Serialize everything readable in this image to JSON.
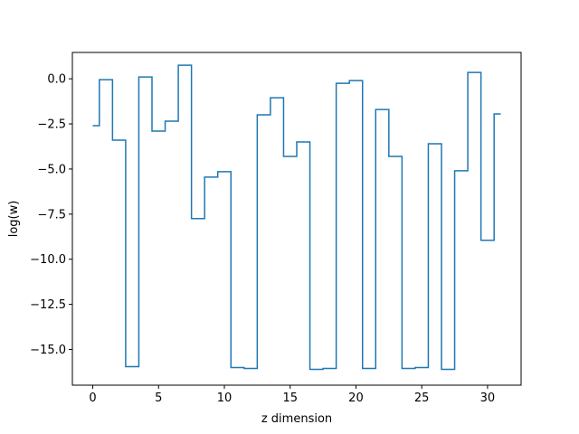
{
  "chart_data": {
    "type": "line",
    "drawstyle": "steps-mid",
    "title": "",
    "xlabel": "z dimension",
    "ylabel": "log(w)",
    "xlim": [
      -1.55,
      32.55
    ],
    "ylim": [
      -16.98,
      1.46
    ],
    "xticks": [
      0,
      5,
      10,
      15,
      20,
      25,
      30
    ],
    "xtick_labels": [
      "0",
      "5",
      "10",
      "15",
      "20",
      "25",
      "30"
    ],
    "yticks": [
      0.0,
      -2.5,
      -5.0,
      -7.5,
      -10.0,
      -12.5,
      -15.0
    ],
    "ytick_labels": [
      "0.0",
      "−2.5",
      "−5.0",
      "−7.5",
      "−10.0",
      "−12.5",
      "−15.0"
    ],
    "grid": false,
    "color": "#1f77b4",
    "x": [
      0,
      1,
      2,
      3,
      4,
      5,
      6,
      7,
      8,
      9,
      10,
      11,
      12,
      13,
      14,
      15,
      16,
      17,
      18,
      19,
      20,
      21,
      22,
      23,
      24,
      25,
      26,
      27,
      28,
      29,
      30,
      31
    ],
    "y": [
      -2.6,
      -0.05,
      -3.4,
      -15.95,
      0.1,
      -2.9,
      -2.35,
      0.75,
      -7.75,
      -5.45,
      -5.15,
      -16.0,
      -16.05,
      -2.0,
      -1.05,
      -4.3,
      -3.5,
      -16.1,
      -16.05,
      -0.25,
      -0.1,
      -16.05,
      -1.7,
      -4.3,
      -16.05,
      -16.0,
      -3.6,
      -16.1,
      -5.1,
      0.35,
      -8.95,
      -1.95
    ]
  }
}
